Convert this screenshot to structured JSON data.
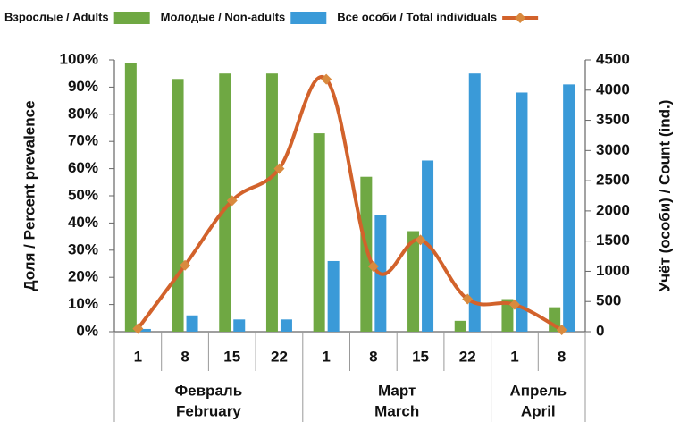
{
  "chart_data": {
    "type": "bar_line",
    "groups": [
      {
        "name": "Февраль",
        "name_en": "February",
        "days": [
          "1",
          "8",
          "15",
          "22"
        ]
      },
      {
        "name": "Март",
        "name_en": "March",
        "days": [
          "1",
          "8",
          "15",
          "22"
        ]
      },
      {
        "name": "Апрель",
        "name_en": "April",
        "days": [
          "1",
          "8"
        ]
      }
    ],
    "series": [
      {
        "name": "Взрослые / Adults",
        "type": "bar",
        "color": "#6fa843",
        "values": [
          99,
          93,
          95,
          95,
          73,
          57,
          37,
          4,
          12,
          9
        ]
      },
      {
        "name": "Молодые / Non-adults",
        "type": "bar",
        "color": "#3a9ad8",
        "values": [
          1,
          6,
          4.5,
          4.5,
          26,
          43,
          63,
          95,
          88,
          91
        ]
      },
      {
        "name": "Все особи / Total individuals",
        "type": "line",
        "axis": "y2",
        "color": "#d2622b",
        "marker_color": "#d98a3e",
        "values": [
          50,
          1100,
          2170,
          2700,
          4180,
          1080,
          1520,
          540,
          450,
          30
        ]
      }
    ],
    "y_label": "Доля / Percent prevalence",
    "y2_label": "Учёт (особи) / Count (ind.)",
    "ylim": [
      0,
      100
    ],
    "yticks": [
      {
        "value": 0,
        "label": "0%"
      },
      {
        "value": 10,
        "label": "10%"
      },
      {
        "value": 20,
        "label": "20%"
      },
      {
        "value": 30,
        "label": "30%"
      },
      {
        "value": 40,
        "label": "40%"
      },
      {
        "value": 50,
        "label": "50%"
      },
      {
        "value": 60,
        "label": "60%"
      },
      {
        "value": 70,
        "label": "70%"
      },
      {
        "value": 80,
        "label": "80%"
      },
      {
        "value": 90,
        "label": "90%"
      },
      {
        "value": 100,
        "label": "100%"
      }
    ],
    "y2lim": [
      0,
      4500
    ],
    "y2ticks": [
      0,
      500,
      1000,
      1500,
      2000,
      2500,
      3000,
      3500,
      4000,
      4500
    ],
    "grid": false,
    "legend": "top"
  }
}
